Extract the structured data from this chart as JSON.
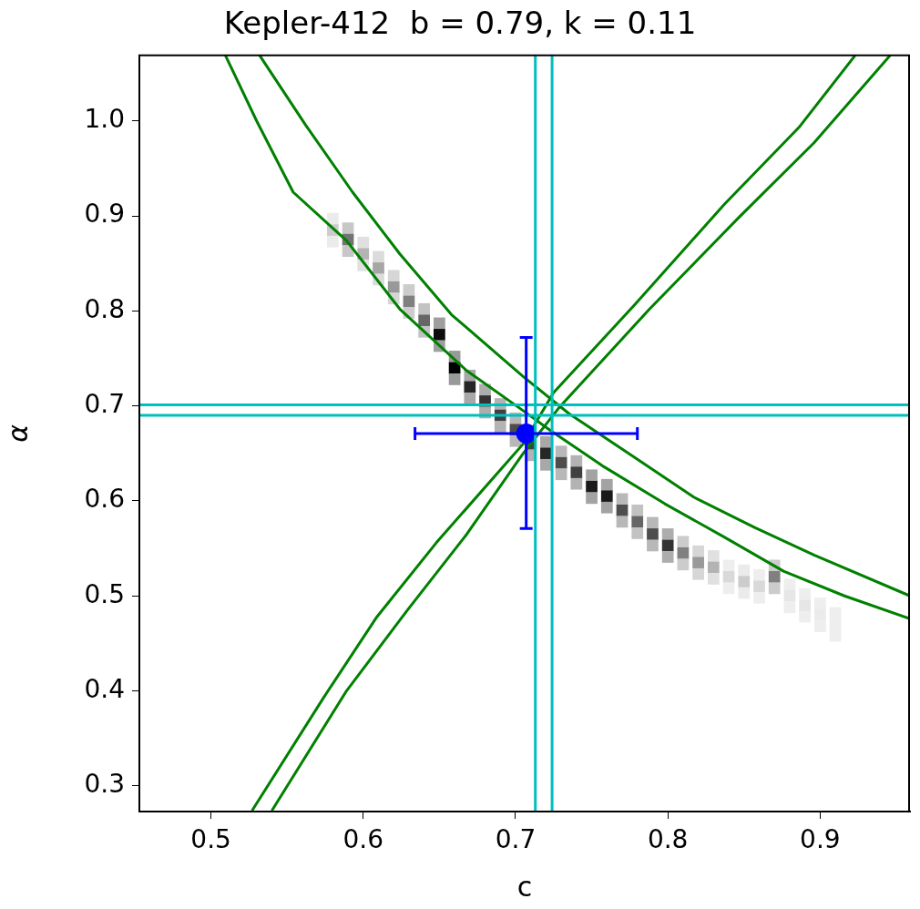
{
  "chart_data": {
    "type": "scatter",
    "title": "Kepler-412  b = 0.79, k = 0.11",
    "xlabel": "c",
    "ylabel": "α",
    "xlim": [
      0.453,
      0.959
    ],
    "ylim": [
      0.273,
      1.069
    ],
    "xticks": [
      0.5,
      0.6,
      0.7,
      0.8,
      0.9
    ],
    "yticks": [
      0.3,
      0.4,
      0.5,
      0.6,
      0.7,
      0.8,
      0.9,
      {
        "value": 1,
        "label": "1.0"
      }
    ],
    "series": [
      {
        "marker": "square",
        "x": [
          0.58,
          0.58,
          0.58,
          0.59,
          0.59,
          0.59,
          0.6,
          0.6,
          0.6,
          0.61,
          0.61,
          0.61,
          0.62,
          0.62,
          0.62,
          0.63,
          0.63,
          0.63,
          0.64,
          0.64,
          0.64,
          0.65,
          0.65,
          0.65,
          0.66,
          0.66,
          0.66,
          0.67,
          0.67,
          0.67,
          0.68,
          0.68,
          0.68,
          0.69,
          0.69,
          0.69,
          0.7,
          0.7,
          0.7,
          0.71,
          0.71,
          0.72,
          0.72,
          0.72,
          0.73,
          0.73,
          0.73,
          0.74,
          0.74,
          0.74,
          0.75,
          0.75,
          0.75,
          0.76,
          0.76,
          0.76,
          0.77,
          0.77,
          0.77,
          0.78,
          0.78,
          0.78,
          0.79,
          0.79,
          0.79,
          0.8,
          0.8,
          0.8,
          0.81,
          0.81,
          0.81,
          0.82,
          0.82,
          0.82,
          0.83,
          0.83,
          0.83,
          0.84,
          0.84,
          0.84,
          0.85,
          0.85,
          0.85,
          0.86,
          0.86,
          0.86,
          0.87,
          0.87,
          0.87,
          0.88,
          0.88,
          0.88,
          0.89,
          0.89,
          0.89,
          0.9,
          0.9,
          0.9,
          0.91,
          0.91,
          0.91
        ],
        "values": [
          0.897,
          0.885,
          0.873,
          0.887,
          0.875,
          0.863,
          0.872,
          0.86,
          0.848,
          0.857,
          0.845,
          0.833,
          0.837,
          0.825,
          0.813,
          0.822,
          0.81,
          0.798,
          0.802,
          0.79,
          0.778,
          0.787,
          0.775,
          0.763,
          0.752,
          0.74,
          0.728,
          0.732,
          0.72,
          0.708,
          0.717,
          0.705,
          0.693,
          0.702,
          0.69,
          0.678,
          0.687,
          0.675,
          0.663,
          0.66,
          0.648,
          0.662,
          0.65,
          0.638,
          0.652,
          0.64,
          0.628,
          0.642,
          0.63,
          0.618,
          0.627,
          0.615,
          0.603,
          0.617,
          0.605,
          0.593,
          0.602,
          0.59,
          0.578,
          0.59,
          0.578,
          0.566,
          0.577,
          0.565,
          0.553,
          0.565,
          0.553,
          0.541,
          0.557,
          0.545,
          0.533,
          0.547,
          0.535,
          0.523,
          0.542,
          0.53,
          0.518,
          0.532,
          0.52,
          0.508,
          0.527,
          0.515,
          0.503,
          0.522,
          0.51,
          0.498,
          0.532,
          0.52,
          0.508,
          0.512,
          0.5,
          0.488,
          0.502,
          0.49,
          0.478,
          0.492,
          0.48,
          0.468,
          0.482,
          0.47,
          0.458
        ],
        "colors": [
          "#ebebeb",
          "#cccccc",
          "#ebebeb",
          "#c7c7c7",
          "#737373",
          "#c7c7c7",
          "#e0e0e0",
          "#b3b3b3",
          "#e0e0e0",
          "#dbdbdb",
          "#a6a6a6",
          "#dbdbdb",
          "#d6d6d6",
          "#999999",
          "#d6d6d6",
          "#cccccc",
          "#808080",
          "#cccccc",
          "#c2c2c2",
          "#666666",
          "#c2c2c2",
          "#9e9e9e",
          "#0d0d0d",
          "#9e9e9e",
          "#999999",
          "#000000",
          "#999999",
          "#a8a8a8",
          "#262626",
          "#a8a8a8",
          "#adadad",
          "#333333",
          "#adadad",
          "#b3b3b3",
          "#404040",
          "#b3b3b3",
          "#b8b8b8",
          "#4d4d4d",
          "#b8b8b8",
          "#404040",
          "#b3b3b3",
          "#a8a8a8",
          "#262626",
          "#a8a8a8",
          "#b8b8b8",
          "#4d4d4d",
          "#b8b8b8",
          "#b3b3b3",
          "#404040",
          "#b3b3b3",
          "#a3a3a3",
          "#1a1a1a",
          "#a3a3a3",
          "#a3a3a3",
          "#1a1a1a",
          "#a3a3a3",
          "#b8b8b8",
          "#4d4d4d",
          "#b8b8b8",
          "#c2c2c2",
          "#666666",
          "#c2c2c2",
          "#b8b8b8",
          "#4d4d4d",
          "#b8b8b8",
          "#adadad",
          "#333333",
          "#adadad",
          "#cccccc",
          "#808080",
          "#cccccc",
          "#d6d6d6",
          "#999999",
          "#d6d6d6",
          "#e0e0e0",
          "#b3b3b3",
          "#e0e0e0",
          "#eeeeee",
          "#d9d9d9",
          "#eeeeee",
          "#ebebeb",
          "#cccccc",
          "#ebebeb",
          "#eeeeee",
          "#d9d9d9",
          "#eeeeee",
          "#cccccc",
          "#808080",
          "#cccccc",
          "#eeeeee",
          "#e6e6e6",
          "#eeeeee",
          "#eeeeee",
          "#e6e6e6",
          "#eeeeee",
          "#eeeeee",
          "#ebebeb",
          "#eeeeee",
          "#eeeeee",
          "#eeeeee",
          "#eeeeee"
        ]
      },
      {
        "type": "line",
        "color": "#008000",
        "x": [
          0.5095,
          0.53,
          0.554,
          0.589,
          0.624,
          0.668,
          0.705,
          0.723,
          0.758,
          0.798,
          0.837,
          0.876,
          0.916,
          0.959
        ],
        "values": [
          1.069,
          1.0,
          0.925,
          0.874,
          0.802,
          0.737,
          0.695,
          0.674,
          0.636,
          0.597,
          0.562,
          0.526,
          0.5,
          0.476
        ]
      },
      {
        "type": "line",
        "color": "#008000",
        "x": [
          0.532,
          0.562,
          0.593,
          0.624,
          0.658,
          0.705,
          0.735,
          0.778,
          0.817,
          0.857,
          0.896,
          0.959
        ],
        "values": [
          1.069,
          0.996,
          0.925,
          0.86,
          0.796,
          0.731,
          0.692,
          0.646,
          0.604,
          0.572,
          0.543,
          0.5
        ]
      },
      {
        "type": "line",
        "color": "#008000",
        "x": [
          0.527,
          0.574,
          0.609,
          0.648,
          0.705,
          0.725,
          0.778,
          0.837,
          0.886,
          0.923
        ],
        "values": [
          0.274,
          0.393,
          0.478,
          0.556,
          0.66,
          0.714,
          0.806,
          0.912,
          0.993,
          1.069
        ]
      },
      {
        "type": "line",
        "color": "#008000",
        "x": [
          0.54,
          0.589,
          0.629,
          0.668,
          0.705,
          0.729,
          0.788,
          0.847,
          0.896,
          0.946
        ],
        "values": [
          0.274,
          0.4,
          0.485,
          0.565,
          0.65,
          0.699,
          0.802,
          0.899,
          0.977,
          1.069
        ]
      },
      {
        "type": "scatter",
        "marker": "circle",
        "color": "#0000ff",
        "x": [
          0.707
        ],
        "values": [
          0.671
        ],
        "errors": [
          [
            0.571,
            0.772
          ]
        ],
        "xerrors": [
          [
            0.634,
            0.78
          ]
        ]
      }
    ],
    "ref_lines": [
      {
        "axis": "x",
        "value": 0.713,
        "color": "#00bfbf"
      },
      {
        "axis": "x",
        "value": 0.724,
        "color": "#00bfbf"
      },
      {
        "axis": "y",
        "value": 0.69,
        "color": "#00bfbf"
      },
      {
        "axis": "y",
        "value": 0.701,
        "color": "#00bfbf"
      }
    ]
  }
}
